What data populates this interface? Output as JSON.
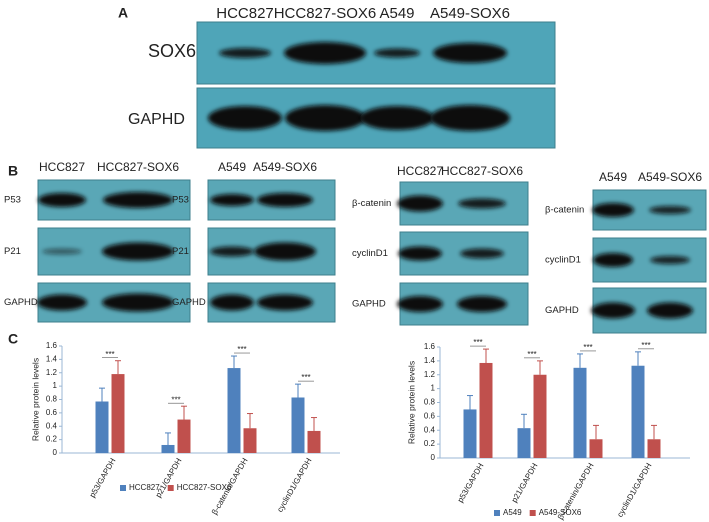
{
  "panels": {
    "A": {
      "label": "A",
      "columns": [
        "HCC827",
        "HCC827-SOX6",
        "A549",
        "A549-SOX6"
      ],
      "rows": [
        "SOX6",
        "GAPHD"
      ]
    },
    "B": {
      "label": "B",
      "groups": [
        {
          "columns": [
            "HCC827",
            "HCC827-SOX6"
          ],
          "rows": [
            "P53",
            "P21",
            "GAPHD"
          ]
        },
        {
          "columns": [
            "A549",
            "A549-SOX6"
          ],
          "rows": [
            "P53",
            "P21",
            "GAPHD"
          ]
        },
        {
          "columns": [
            "HCC827",
            "HCC827-SOX6"
          ],
          "rows": [
            "β-catenin",
            "cyclinD1",
            "GAPHD"
          ]
        },
        {
          "columns": [
            "A549",
            "A549-SOX6"
          ],
          "rows": [
            "β-catenin",
            "cyclinD1",
            "GAPHD"
          ]
        }
      ]
    },
    "C": {
      "label": "C"
    }
  },
  "chart_data": [
    {
      "type": "bar",
      "y_label": "Relative protein levels",
      "categories": [
        "p53/GAPDH",
        "p21/GAPDH",
        "β-catenin/GAPDH",
        "cyclinD1/GAPDH"
      ],
      "annotations": [
        "***",
        "***",
        "***",
        "***"
      ],
      "series": [
        {
          "name": "HCC827",
          "color": "#4f81bd",
          "values": [
            0.77,
            0.12,
            1.27,
            0.83
          ],
          "errors": [
            0.2,
            0.18,
            0.18,
            0.2
          ]
        },
        {
          "name": "HCC827-SOX6",
          "color": "#c0504d",
          "values": [
            1.18,
            0.5,
            0.37,
            0.33
          ],
          "errors": [
            0.2,
            0.2,
            0.22,
            0.2
          ]
        }
      ],
      "ylim": [
        0,
        1.6
      ],
      "yticks": [
        0,
        0.2,
        0.4,
        0.6,
        0.8,
        1,
        1.2,
        1.4,
        1.6
      ],
      "legend": "bottom"
    },
    {
      "type": "bar",
      "y_label": "Relative protein levels",
      "categories": [
        "p53/GAPDH",
        "p21/GAPDH",
        "β-catenin/GAPDH",
        "cyclinD1/GAPDH"
      ],
      "annotations": [
        "***",
        "***",
        "***",
        "***"
      ],
      "series": [
        {
          "name": "A549",
          "color": "#4f81bd",
          "values": [
            0.7,
            0.43,
            1.3,
            1.33
          ],
          "errors": [
            0.2,
            0.2,
            0.2,
            0.2
          ]
        },
        {
          "name": "A549-SOX6",
          "color": "#c0504d",
          "values": [
            1.37,
            1.2,
            0.27,
            0.27
          ],
          "errors": [
            0.2,
            0.2,
            0.2,
            0.2
          ]
        }
      ],
      "ylim": [
        0,
        1.6
      ],
      "yticks": [
        0,
        0.2,
        0.4,
        0.6,
        0.8,
        1,
        1.2,
        1.4,
        1.6
      ],
      "legend": "bottom"
    }
  ]
}
